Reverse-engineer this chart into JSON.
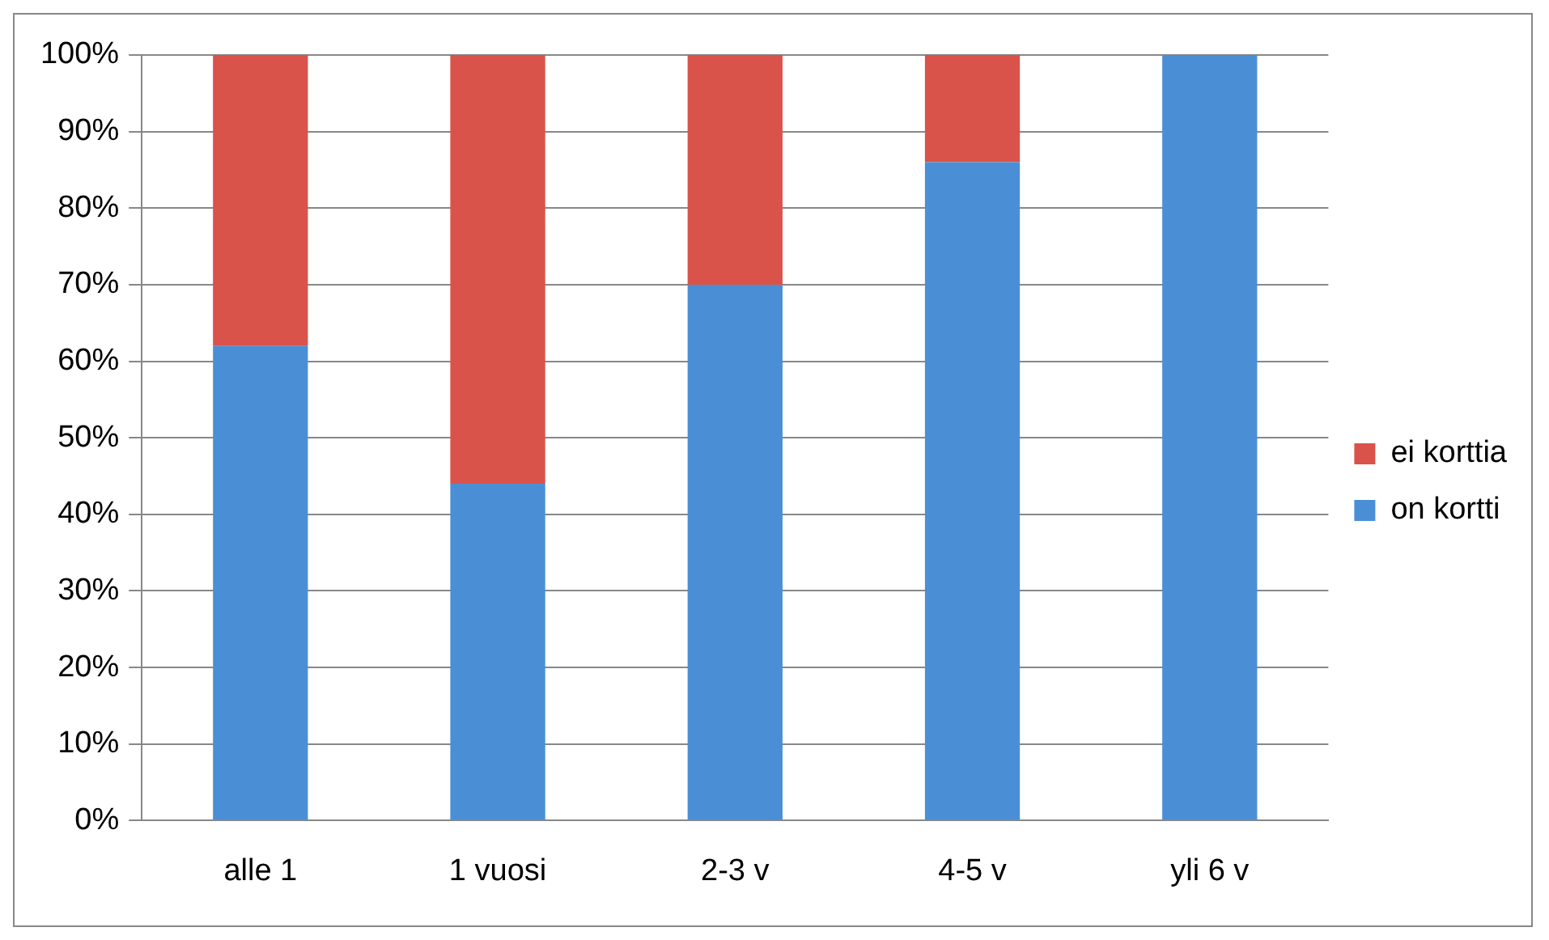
{
  "chart_data": {
    "type": "bar",
    "stacked": true,
    "categories": [
      "alle 1",
      "1 vuosi",
      "2-3 v",
      "4-5 v",
      "yli 6 v"
    ],
    "series": [
      {
        "name": "on kortti",
        "color": "#4a8fd6",
        "values": [
          62,
          44,
          70,
          86,
          100
        ]
      },
      {
        "name": "ei korttia",
        "color": "#d9534a",
        "values": [
          38,
          56,
          30,
          14,
          0
        ]
      }
    ],
    "ylim": [
      0,
      100
    ],
    "yticks": [
      {
        "value": 0,
        "label": "0%"
      },
      {
        "value": 10,
        "label": "10%"
      },
      {
        "value": 20,
        "label": "20%"
      },
      {
        "value": 30,
        "label": "30%"
      },
      {
        "value": 40,
        "label": "40%"
      },
      {
        "value": 50,
        "label": "50%"
      },
      {
        "value": 60,
        "label": "60%"
      },
      {
        "value": 70,
        "label": "70%"
      },
      {
        "value": 80,
        "label": "80%"
      },
      {
        "value": 90,
        "label": "90%"
      },
      {
        "value": 100,
        "label": "100%"
      }
    ],
    "grid": "y",
    "legend": "right"
  }
}
